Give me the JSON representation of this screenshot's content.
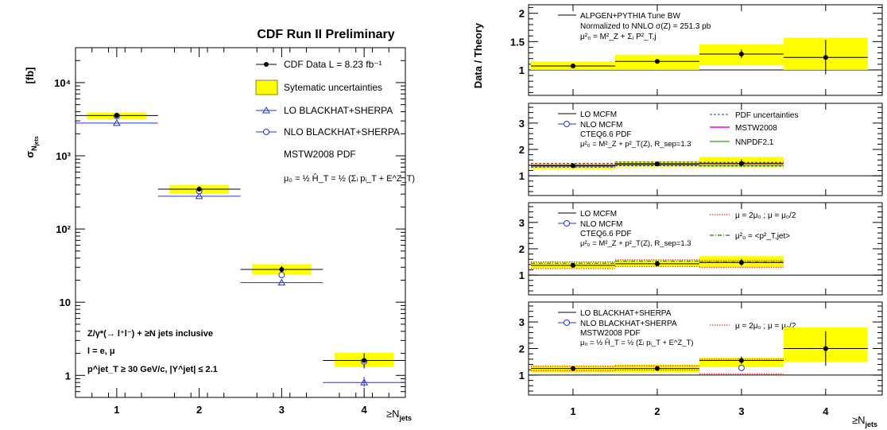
{
  "chart_data": [
    {
      "type": "line",
      "title": "CDF Run II Preliminary",
      "ylabel": "σ_N_jets",
      "ylabel_unit": "[fb]",
      "xlabel": "≥N_jets",
      "yscale": "log",
      "ylim": [
        0.5,
        30000
      ],
      "xlim": [
        0.5,
        4.5
      ],
      "categories": [
        "1",
        "2",
        "3",
        "4"
      ],
      "ytick_labels": [
        "1",
        "10",
        "10²",
        "10³",
        "10⁴"
      ],
      "legend": {
        "data": "CDF Data  L = 8.23 fb⁻¹",
        "syst": "Sytematic uncertainties",
        "lo": "LO BLACKHAT+SHERPA",
        "nlo": "NLO BLACKHAT+SHERPA",
        "pdf": "MSTW2008 PDF",
        "scale": "μ₀ = ½ Ĥ_T = ½ (Σᵢ pᵢ_T + E^Z_T)"
      },
      "annotation": [
        "Z/γ*(→ l⁺l⁻) + ≥N jets inclusive",
        "l = e, μ",
        "p^jet_T ≥ 30 GeV/c, |Y^jet| ≤ 2.1"
      ],
      "series": [
        {
          "name": "CDF Data",
          "values": [
            3550,
            350,
            28,
            1.6
          ],
          "err_low": [
            3250,
            320,
            25,
            1.25
          ],
          "err_high": [
            3850,
            380,
            31,
            2.0
          ]
        },
        {
          "name": "Sytematic uncertainties",
          "low": [
            3150,
            300,
            24,
            1.3
          ],
          "high": [
            3900,
            400,
            33,
            2.05
          ]
        },
        {
          "name": "LO BLACKHAT+SHERPA",
          "values": [
            2800,
            280,
            18.5,
            0.8
          ],
          "err_low": [
            2800,
            280,
            18.5,
            0.7
          ],
          "err_high": [
            2800,
            280,
            18.5,
            0.95
          ]
        },
        {
          "name": "NLO BLACKHAT+SHERPA",
          "values": [
            3500,
            330,
            23.5,
            1.55
          ]
        }
      ]
    },
    {
      "type": "line",
      "panel": "ratio-1",
      "ylabel": "Data / Theory",
      "ylim": [
        0.55,
        2.15
      ],
      "yticks": [
        1,
        1.5,
        2
      ],
      "ytick_labels": [
        "1",
        "1.5",
        "2"
      ],
      "legend": {
        "line1": "ALPGEN+PYTHIA Tune BW",
        "line2": "Normalized to NNLO σ(Z) = 251.3 pb",
        "line3": "μ²₀ = M²_Z + Σⱼ P²_T,j"
      },
      "series": [
        {
          "name": "ratio",
          "values": [
            1.07,
            1.15,
            1.28,
            1.22
          ],
          "err_low": [
            1.06,
            1.14,
            1.21,
            0.92
          ],
          "err_high": [
            1.08,
            1.16,
            1.36,
            1.53
          ]
        },
        {
          "name": "band",
          "low": [
            1.0,
            1.0,
            1.08,
            1.0
          ],
          "high": [
            1.15,
            1.27,
            1.45,
            1.57
          ]
        }
      ]
    },
    {
      "type": "line",
      "panel": "ratio-2",
      "ylim": [
        0.25,
        3.75
      ],
      "yticks": [
        1,
        2,
        3
      ],
      "ytick_labels": [
        "1",
        "2",
        "3"
      ],
      "legend": {
        "lo": "LO MCFM",
        "nlo": "NLO MCFM",
        "pdf_set": "CTEQ6.6 PDF",
        "scale": "μ²₀ = M²_Z + p²_T(Z), R_sep=1.3",
        "pdfunc": "PDF uncertainties",
        "mstw": "MSTW2008",
        "nnpdf": "NNPDF2.1"
      },
      "series": [
        {
          "name": "ratio",
          "values": [
            1.38,
            1.45,
            1.47
          ],
          "err_low": [
            1.32,
            1.4,
            1.33
          ],
          "err_high": [
            1.44,
            1.5,
            1.62
          ]
        },
        {
          "name": "band",
          "low": [
            1.25,
            1.32,
            1.32
          ],
          "high": [
            1.45,
            1.55,
            1.72
          ]
        }
      ]
    },
    {
      "type": "line",
      "panel": "ratio-3",
      "ylim": [
        0.25,
        3.75
      ],
      "yticks": [
        1,
        2,
        3
      ],
      "ytick_labels": [
        "1",
        "2",
        "3"
      ],
      "legend": {
        "lo": "LO MCFM",
        "nlo": "NLO MCFM",
        "pdf_set": "CTEQ6.6 PDF",
        "scale": "μ²₀ = M²_Z + p²_T(Z), R_sep=1.3",
        "var1": "μ = 2μ₀ ; μ = μ₀/2",
        "var2": "μ²₀ = <p²_T,jet>"
      },
      "series": [
        {
          "name": "ratio",
          "values": [
            1.37,
            1.43,
            1.48
          ],
          "err_low": [
            1.3,
            1.38,
            1.35
          ],
          "err_high": [
            1.44,
            1.49,
            1.62
          ]
        },
        {
          "name": "band",
          "low": [
            1.27,
            1.33,
            1.3
          ],
          "high": [
            1.48,
            1.57,
            1.72
          ]
        }
      ]
    },
    {
      "type": "line",
      "panel": "ratio-4",
      "xlabel": "≥N_jets",
      "categories": [
        "1",
        "2",
        "3",
        "4"
      ],
      "ylim": [
        0.25,
        3.75
      ],
      "yticks": [
        1,
        2,
        3
      ],
      "ytick_labels": [
        "1",
        "2",
        "3"
      ],
      "legend": {
        "lo": "LO BLACKHAT+SHERPA",
        "nlo": "NLO BLACKHAT+SHERPA",
        "pdf_set": "MSTW2008 PDF",
        "scale": "μ₀ = ½ Ĥ_T = ½ (Σᵢ pᵢ_T + E^Z_T)",
        "var1": "μ = 2μ₀ ; μ = μ₀/2"
      },
      "series": [
        {
          "name": "ratio",
          "values": [
            1.25,
            1.25,
            1.55,
            2.0
          ],
          "err_low": [
            1.2,
            1.19,
            1.42,
            1.35
          ],
          "err_high": [
            1.3,
            1.31,
            1.7,
            2.65
          ]
        },
        {
          "name": "band",
          "low": [
            1.1,
            1.1,
            1.3,
            1.5
          ],
          "high": [
            1.35,
            1.4,
            1.65,
            2.8
          ]
        },
        {
          "name": "NLO BLACKHAT+SHERPA",
          "values": [
            null,
            null,
            1.27,
            null
          ]
        }
      ]
    }
  ]
}
